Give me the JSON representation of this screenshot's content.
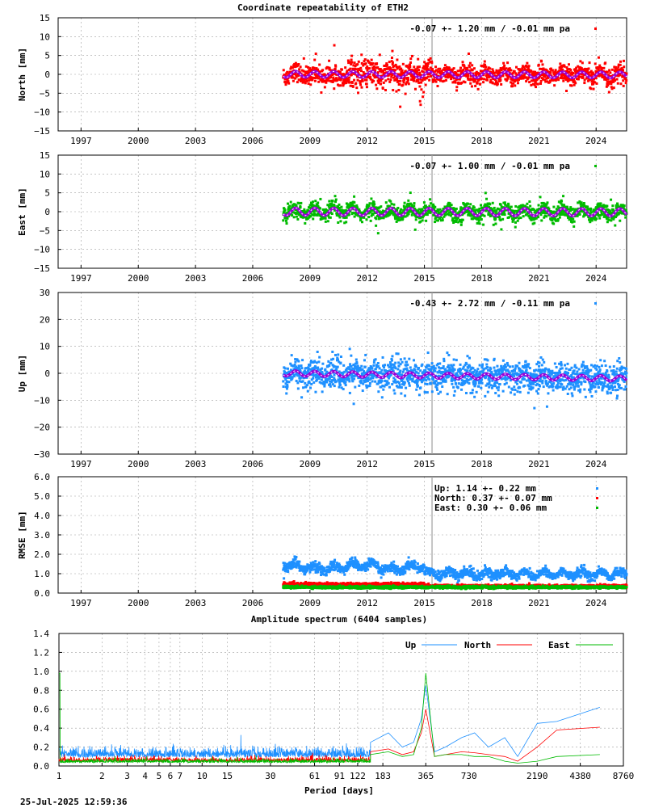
{
  "title": "Coordinate repeatability of ETH2",
  "timestamp": "25-Jul-2025 12:59:36",
  "colors": {
    "north": "#ff0000",
    "east": "#00bb00",
    "up": "#1e90ff",
    "model": "#9a00d8",
    "marker": "#a0a0a0"
  },
  "chart_data": [
    {
      "type": "scatter",
      "name": "north",
      "xlabel": "",
      "ylabel": "North [mm]",
      "xlim": [
        1995.8,
        2025.6
      ],
      "ylim": [
        -15,
        15
      ],
      "xticks": [
        1997,
        2000,
        2003,
        2006,
        2009,
        2012,
        2015,
        2018,
        2021,
        2024
      ],
      "yticks": [
        -15,
        -10,
        -5,
        0,
        5,
        10,
        15
      ],
      "legend": "-0.07 +- 1.20 mm / -0.01 mm pa",
      "legend_position": "top-right",
      "series": [
        {
          "data_start": 2007.6,
          "data_end": 2025.6,
          "scatter_sd": 1.2,
          "trend_mm_pa": -0.01,
          "seasonal_amplitude": 0.8
        }
      ],
      "event_marker": 2015.4,
      "grid": true
    },
    {
      "type": "scatter",
      "name": "east",
      "xlabel": "",
      "ylabel": "East [mm]",
      "xlim": [
        1995.8,
        2025.6
      ],
      "ylim": [
        -15,
        15
      ],
      "xticks": [
        1997,
        2000,
        2003,
        2006,
        2009,
        2012,
        2015,
        2018,
        2021,
        2024
      ],
      "yticks": [
        -15,
        -10,
        -5,
        0,
        5,
        10,
        15
      ],
      "legend": "-0.07 +- 1.00 mm / -0.01 mm pa",
      "legend_position": "top-right",
      "series": [
        {
          "data_start": 2007.6,
          "data_end": 2025.6,
          "scatter_sd": 1.0,
          "trend_mm_pa": -0.01,
          "seasonal_amplitude": 1.0
        }
      ],
      "event_marker": 2015.4,
      "grid": true
    },
    {
      "type": "scatter",
      "name": "up",
      "xlabel": "",
      "ylabel": "Up [mm]",
      "xlim": [
        1995.8,
        2025.6
      ],
      "ylim": [
        -30,
        30
      ],
      "xticks": [
        1997,
        2000,
        2003,
        2006,
        2009,
        2012,
        2015,
        2018,
        2021,
        2024
      ],
      "yticks": [
        -30,
        -20,
        -10,
        0,
        10,
        20,
        30
      ],
      "legend": "-0.43 +- 2.72 mm / -0.11 mm pa",
      "legend_position": "top-right",
      "series": [
        {
          "data_start": 2007.6,
          "data_end": 2025.6,
          "scatter_sd": 2.7,
          "trend_mm_pa": -0.11,
          "seasonal_amplitude": 1.0
        }
      ],
      "event_marker": 2015.4,
      "grid": true
    },
    {
      "type": "scatter",
      "name": "rmse",
      "xlabel": "",
      "ylabel": "RMSE [mm]",
      "xlim": [
        1995.8,
        2025.6
      ],
      "ylim": [
        0,
        6
      ],
      "xticks": [
        1997,
        2000,
        2003,
        2006,
        2009,
        2012,
        2015,
        2018,
        2021,
        2024
      ],
      "yticks": [
        0.0,
        1.0,
        2.0,
        3.0,
        4.0,
        5.0,
        6.0
      ],
      "ytick_labels": [
        "0.0",
        "1.0",
        "2.0",
        "3.0",
        "4.0",
        "5.0",
        "6.0"
      ],
      "legend_position": "top-right",
      "series": [
        {
          "name": "Up:",
          "label": "Up:     1.14 +- 0.22 mm",
          "mean_before_2015": 1.35,
          "mean_after_2015": 1.0
        },
        {
          "name": "North:",
          "label": "North:  0.37 +- 0.07 mm",
          "mean_before_2015": 0.45,
          "mean_after_2015": 0.35
        },
        {
          "name": "East:",
          "label": "East:   0.30 +- 0.06 mm",
          "mean_before_2015": 0.3,
          "mean_after_2015": 0.3
        }
      ],
      "event_marker": 2015.4,
      "grid": true
    },
    {
      "type": "line",
      "name": "spectrum",
      "title": "Amplitude spectrum (6404 samples)",
      "xlabel": "Period [days]",
      "ylabel": "",
      "x_scale": "log",
      "xlim": [
        1,
        8760
      ],
      "ylim": [
        0,
        1.4
      ],
      "xticks": [
        1,
        2,
        3,
        4,
        5,
        6,
        7,
        10,
        15,
        30,
        61,
        91,
        122,
        183,
        365,
        730,
        2190,
        4380,
        8760
      ],
      "yticks": [
        0.0,
        0.2,
        0.4,
        0.6,
        0.8,
        1.0,
        1.2,
        1.4
      ],
      "ytick_labels": [
        "0.0",
        "0.2",
        "0.4",
        "0.6",
        "0.8",
        "1.0",
        "1.2",
        "1.4"
      ],
      "legend_position": "top-right",
      "series": [
        {
          "name": "Up",
          "x": [
            1,
            150,
            200,
            250,
            300,
            340,
            365,
            420,
            500,
            650,
            800,
            1000,
            1300,
            1600,
            2190,
            3000,
            6000
          ],
          "y": [
            0.1,
            0.25,
            0.35,
            0.2,
            0.25,
            0.5,
            0.85,
            0.15,
            0.2,
            0.3,
            0.35,
            0.2,
            0.3,
            0.1,
            0.45,
            0.47,
            0.62
          ]
        },
        {
          "name": "North",
          "x": [
            1,
            150,
            200,
            250,
            300,
            340,
            365,
            420,
            500,
            650,
            800,
            1000,
            1300,
            1600,
            2190,
            3000,
            6000
          ],
          "y": [
            0.05,
            0.15,
            0.18,
            0.12,
            0.15,
            0.35,
            0.6,
            0.1,
            0.12,
            0.15,
            0.14,
            0.12,
            0.1,
            0.05,
            0.2,
            0.38,
            0.41
          ]
        },
        {
          "name": "East",
          "x": [
            1,
            150,
            200,
            250,
            300,
            340,
            365,
            420,
            500,
            650,
            800,
            1000,
            1300,
            1600,
            2190,
            3000,
            6000
          ],
          "y": [
            0.03,
            0.12,
            0.15,
            0.1,
            0.12,
            0.4,
            0.98,
            0.1,
            0.12,
            0.12,
            0.1,
            0.1,
            0.05,
            0.03,
            0.05,
            0.1,
            0.12
          ]
        }
      ],
      "grid": true
    }
  ]
}
